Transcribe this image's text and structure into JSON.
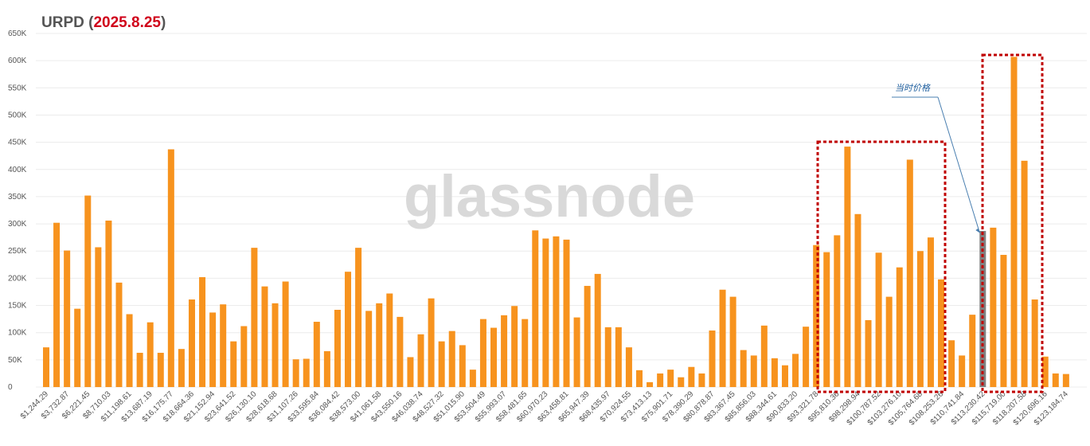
{
  "chart_data": {
    "type": "bar",
    "title_parts": [
      "URPD (",
      "2025.8.25",
      ")"
    ],
    "watermark": "glassnode",
    "annotation": {
      "text": "当时价格",
      "index": 90
    },
    "categories": [
      "$1,244.29",
      null,
      "$3,732.87",
      null,
      "$6,221.45",
      null,
      "$8,710.03",
      null,
      "$11,198.61",
      null,
      "$13,687.19",
      null,
      "$16,175.77",
      null,
      "$18,664.36",
      null,
      "$21,152.94",
      null,
      "$23,641.52",
      null,
      "$26,130.10",
      null,
      "$28,618.68",
      null,
      "$31,107.26",
      null,
      "$33,595.84",
      null,
      "$36,084.42",
      null,
      "$38,573.00",
      null,
      "$41,061.58",
      null,
      "$43,550.16",
      null,
      "$46,038.74",
      null,
      "$48,527.32",
      null,
      "$51,015.90",
      null,
      "$53,504.49",
      null,
      "$55,993.07",
      null,
      "$58,481.65",
      null,
      "$60,970.23",
      null,
      "$63,458.81",
      null,
      "$65,947.39",
      null,
      "$68,435.97",
      null,
      "$70,924.55",
      null,
      "$73,413.13",
      null,
      "$75,901.71",
      null,
      "$78,390.29",
      null,
      "$80,878.87",
      null,
      "$83,367.45",
      null,
      "$85,856.03",
      null,
      "$88,344.61",
      null,
      "$90,833.20",
      null,
      "$93,321.78",
      null,
      "$95,810.36",
      null,
      "$98,298.94",
      null,
      "$100,787.52",
      null,
      "$103,276.10",
      null,
      "$105,764.68",
      null,
      "$108,253.26",
      null,
      "$110,741.84",
      null,
      "$113,230.42",
      null,
      "$115,719.00",
      null,
      "$118,207.58",
      null,
      "$120,696.16",
      null,
      "$123,184.74"
    ],
    "values": [
      73000,
      302000,
      251000,
      144000,
      352000,
      257000,
      306000,
      192000,
      134000,
      63000,
      119000,
      63000,
      437000,
      70000,
      161000,
      202000,
      137000,
      152000,
      84000,
      112000,
      256000,
      185000,
      154000,
      194000,
      51000,
      52000,
      120000,
      66000,
      142000,
      212000,
      256000,
      140000,
      154000,
      172000,
      129000,
      55000,
      97000,
      163000,
      84000,
      103000,
      77000,
      32000,
      125000,
      109000,
      132000,
      149000,
      125000,
      288000,
      273000,
      277000,
      271000,
      128000,
      186000,
      208000,
      110000,
      110000,
      73000,
      31000,
      9000,
      25000,
      32000,
      18000,
      37000,
      25000,
      104000,
      179000,
      166000,
      68000,
      58000,
      113000,
      53000,
      40000,
      61000,
      111000,
      261000,
      248000,
      279000,
      442000,
      318000,
      123000,
      247000,
      166000,
      220000,
      418000,
      250000,
      275000,
      198000,
      86000,
      58000,
      133000,
      287000,
      293000,
      243000,
      607000,
      416000,
      161000,
      56000,
      25000,
      24000
    ],
    "color": "#f7931e",
    "highlight_color": "#808080",
    "ylim": [
      0,
      650000
    ],
    "yticks": [
      0,
      {
        "value": 50000,
        "label": "50K"
      },
      {
        "value": 100000,
        "label": "100K"
      },
      {
        "value": 150000,
        "label": "150K"
      },
      {
        "value": 200000,
        "label": "200K"
      },
      {
        "value": 250000,
        "label": "250K"
      },
      {
        "value": 300000,
        "label": "300K"
      },
      {
        "value": 350000,
        "label": "350K"
      },
      {
        "value": 400000,
        "label": "400K"
      },
      {
        "value": 450000,
        "label": "450K"
      },
      {
        "value": 500000,
        "label": "500K"
      },
      {
        "value": 550000,
        "label": "550K"
      },
      {
        "value": 600000,
        "label": "600K"
      },
      {
        "value": 650000,
        "label": "650K"
      }
    ],
    "grid": true
  }
}
